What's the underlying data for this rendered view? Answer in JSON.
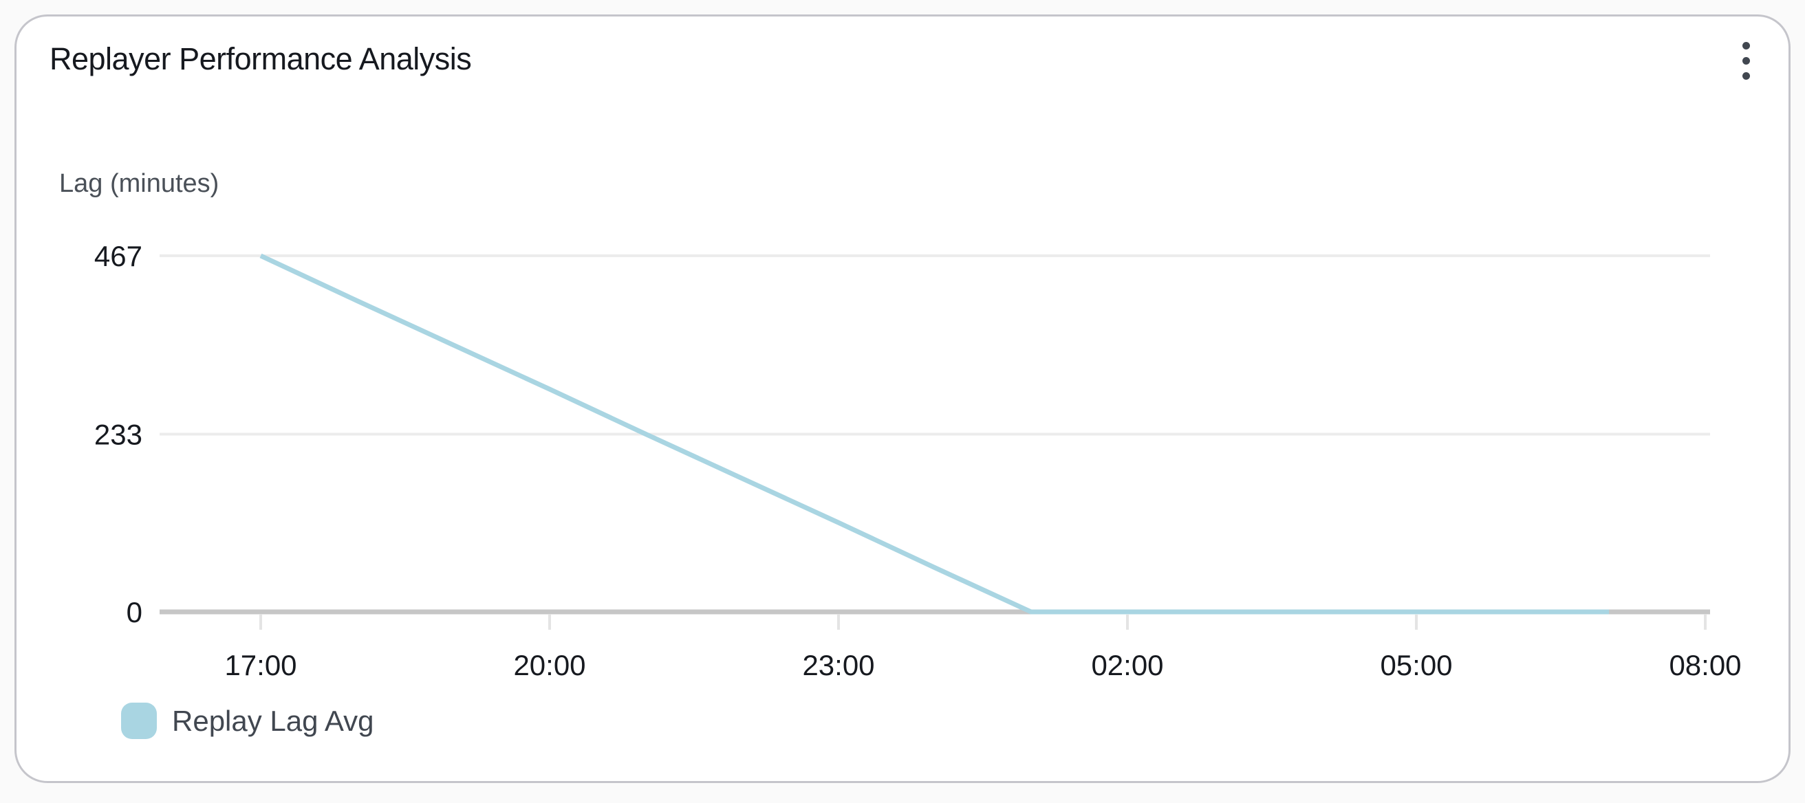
{
  "card": {
    "title": "Replayer Performance Analysis",
    "menu_icon": "vertical-ellipsis"
  },
  "chart_data": {
    "type": "line",
    "title": "Replayer Performance Analysis",
    "ylabel": "Lag (minutes)",
    "x": [
      "17:00",
      "18:00",
      "19:00",
      "20:00",
      "21:00",
      "22:00",
      "23:00",
      "00:00",
      "01:00",
      "02:00",
      "03:00",
      "04:00",
      "05:00",
      "06:00",
      "07:00"
    ],
    "series": [
      {
        "name": "Replay Lag Avg",
        "color": "#a9d5e2",
        "values": [
          467,
          408,
          350,
          292,
          233,
          175,
          117,
          58,
          0,
          0,
          0,
          0,
          0,
          0,
          0
        ]
      }
    ],
    "ylim": [
      0,
      467
    ],
    "y_ticks": [
      0,
      233,
      467
    ],
    "x_tick_labels": [
      "17:00",
      "20:00",
      "23:00",
      "02:00",
      "05:00",
      "08:00"
    ],
    "x_tick_interval_hours": 3,
    "grid": "horizontal",
    "legend_position": "bottom-left"
  }
}
